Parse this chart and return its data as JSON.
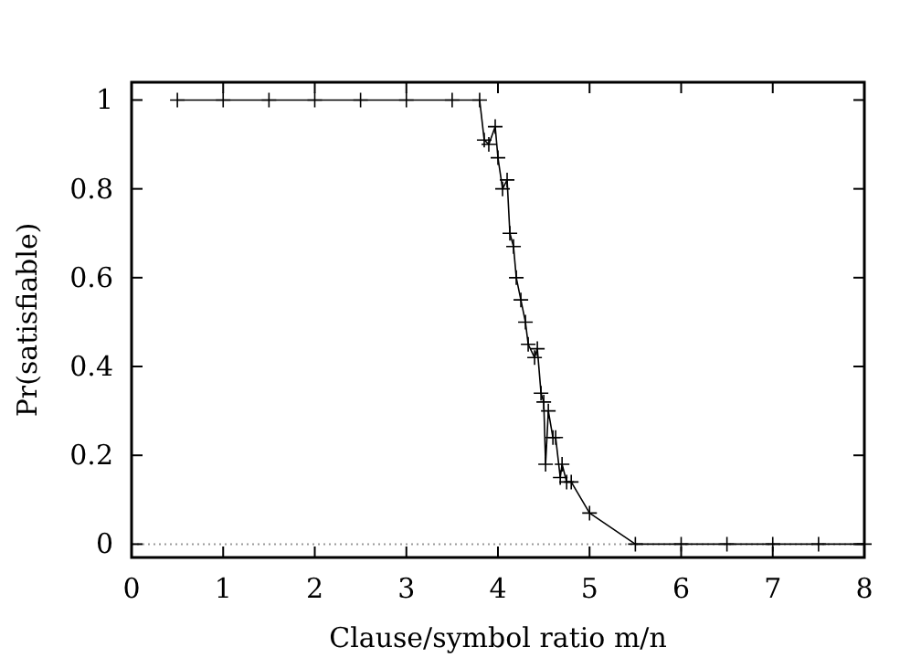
{
  "chart_data": {
    "type": "line",
    "xlabel": "Clause/symbol ratio m/n",
    "ylabel": "Pr(satisfiable)",
    "xlim": [
      0,
      8
    ],
    "ylim": [
      -0.03,
      1.04
    ],
    "xticks": [
      0,
      1,
      2,
      3,
      4,
      5,
      6,
      7,
      8
    ],
    "yticks": [
      0,
      0.2,
      0.4,
      0.6,
      0.8,
      1
    ],
    "grid": false,
    "marker": "cross",
    "line_style": "solid",
    "ref_lines": [
      {
        "axis": "y",
        "value": 0,
        "color": "#999999",
        "line_style": "dotted"
      }
    ],
    "series": [
      {
        "color": "#000000",
        "x": [
          0.5,
          1,
          1.5,
          2,
          2.5,
          3,
          3.5,
          3.8,
          3.85,
          3.9,
          3.97,
          4.0,
          4.05,
          4.1,
          4.13,
          4.17,
          4.2,
          4.25,
          4.3,
          4.33,
          4.4,
          4.43,
          4.47,
          4.5,
          4.52,
          4.55,
          4.6,
          4.63,
          4.68,
          4.7,
          4.75,
          4.8,
          5.0,
          5.5,
          6,
          6.5,
          7,
          7.5,
          8
        ],
        "values": [
          1,
          1,
          1,
          1,
          1,
          1,
          1,
          1,
          0.91,
          0.9,
          0.94,
          0.87,
          0.8,
          0.82,
          0.7,
          0.67,
          0.6,
          0.55,
          0.5,
          0.45,
          0.42,
          0.44,
          0.34,
          0.32,
          0.18,
          0.3,
          0.24,
          0.24,
          0.15,
          0.18,
          0.14,
          0.14,
          0.07,
          0,
          0,
          0,
          0,
          0,
          0
        ]
      }
    ]
  }
}
